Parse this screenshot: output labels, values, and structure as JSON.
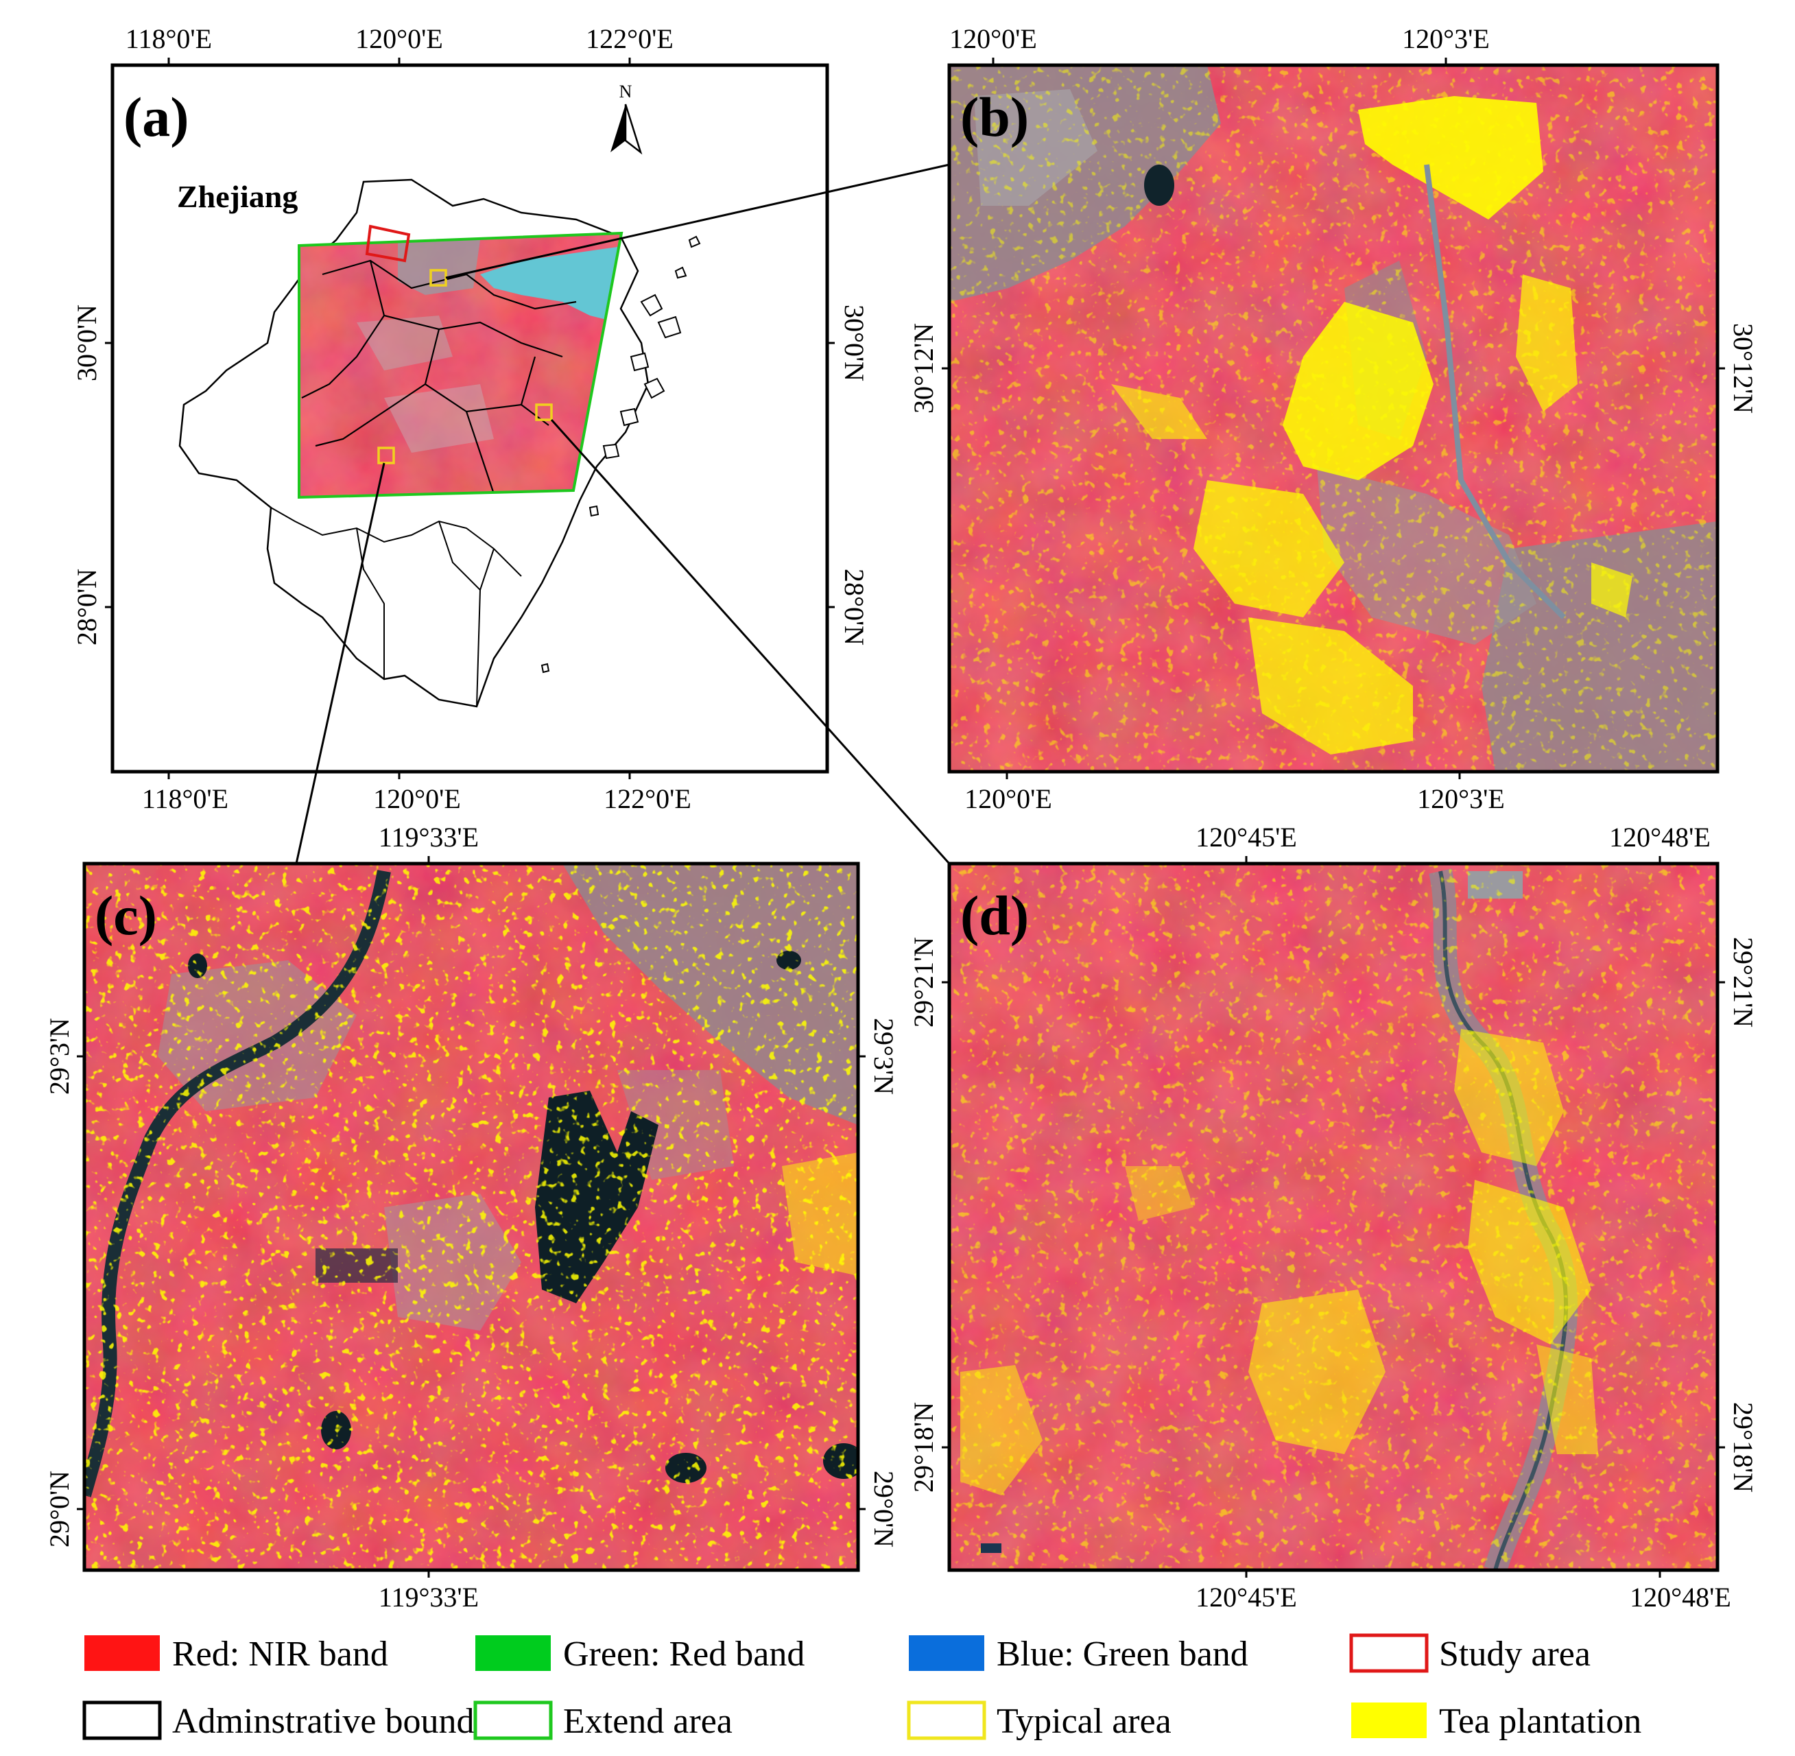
{
  "panels": {
    "a": {
      "label": "(a)",
      "province": "Zhejiang",
      "north": "N",
      "ticks_top": [
        "118°0'E",
        "120°0'E",
        "122°0'E"
      ],
      "ticks_bottom": [
        "118°0'E",
        "120°0'E",
        "122°0'E"
      ],
      "ticks_left": [
        "30°0'N",
        "28°0'N"
      ],
      "ticks_right": [
        "30°0'N",
        "28°0'N"
      ]
    },
    "b": {
      "label": "(b)",
      "ticks_top": [
        "120°0'E",
        "120°3'E"
      ],
      "ticks_bottom": [
        "120°0'E",
        "120°3'E"
      ],
      "ticks_left": [
        "30°12'N"
      ],
      "ticks_right": [
        "30°12'N"
      ]
    },
    "c": {
      "label": "(c)",
      "ticks_top": [
        "119°33'E"
      ],
      "ticks_bottom": [
        "119°33'E"
      ],
      "ticks_left": [
        "29°3'N",
        "29°0'N"
      ],
      "ticks_right": [
        "29°3'N",
        "29°0'N"
      ]
    },
    "d": {
      "label": "(d)",
      "ticks_top": [
        "120°45'E",
        "120°48'E"
      ],
      "ticks_bottom": [
        "120°45'E",
        "120°48'E"
      ],
      "ticks_left": [
        "29°21'N",
        "29°18'N"
      ],
      "ticks_right": [
        "29°21'N",
        "29°18'N"
      ]
    }
  },
  "legend": [
    {
      "text": "Red: NIR band",
      "swatch": "fill",
      "color": "#ff1414"
    },
    {
      "text": "Green: Red band",
      "swatch": "fill",
      "color": "#00cc1e"
    },
    {
      "text": "Blue: Green band",
      "swatch": "fill",
      "color": "#0a6edc"
    },
    {
      "text": "Study area",
      "swatch": "outline",
      "color": "#e01818"
    },
    {
      "text": "Adminstrative boundaries",
      "swatch": "outline",
      "color": "#000000"
    },
    {
      "text": "Extend area",
      "swatch": "outline",
      "color": "#1ec81e"
    },
    {
      "text": "Typical area",
      "swatch": "outline",
      "color": "#f0e61e"
    },
    {
      "text": "Tea plantation",
      "swatch": "fill",
      "color": "#ffff00"
    }
  ],
  "colors": {
    "vegetation": "#e5323f",
    "urban": "#8f8a8f",
    "water": "#12262e",
    "tea": "#ffff00",
    "sea": "#63c6d4"
  }
}
